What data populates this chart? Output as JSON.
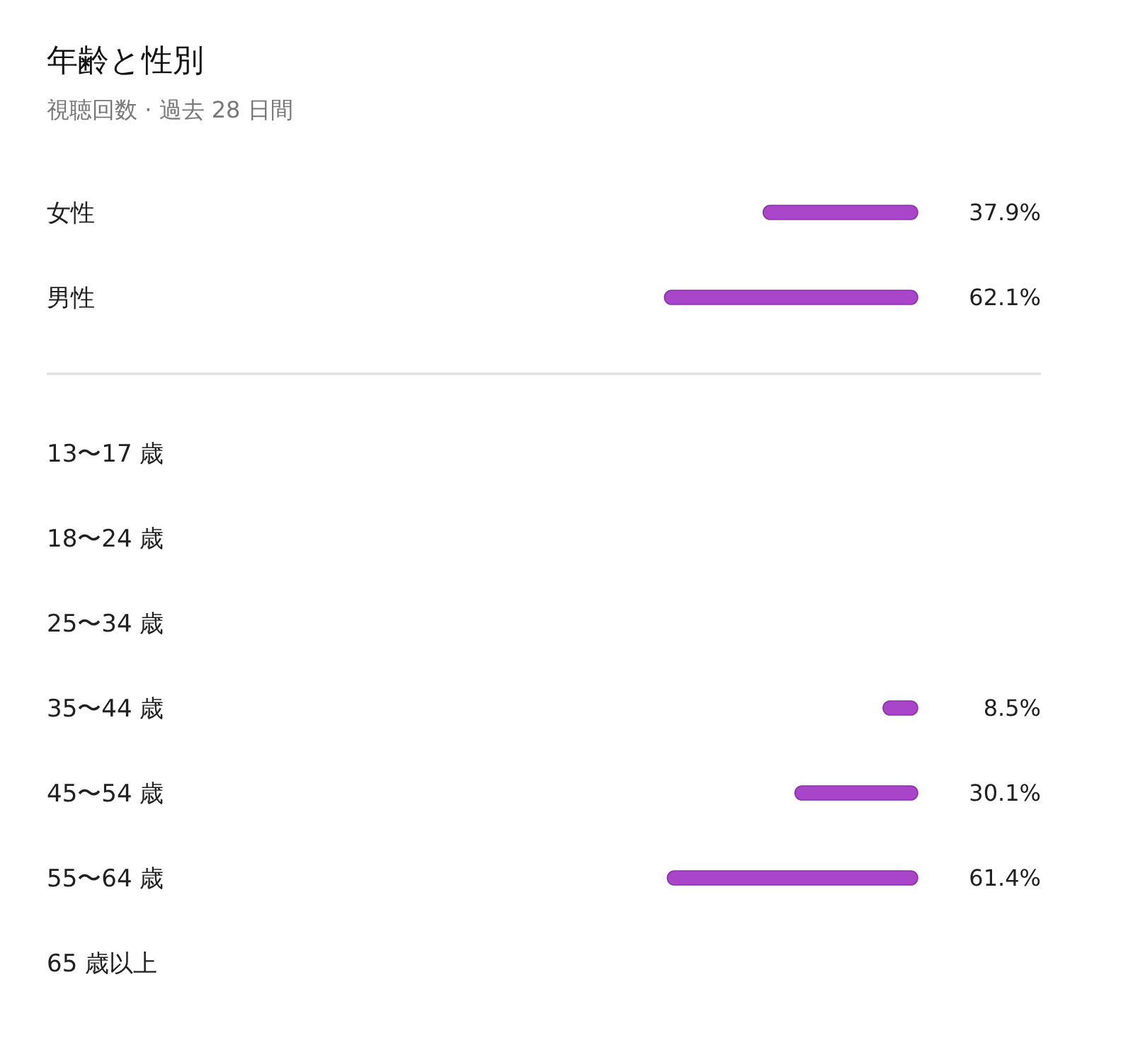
{
  "chart_data": {
    "type": "bar",
    "title": "年齢と性別",
    "subtitle": "視聴回数 · 過去 28 日間",
    "orientation": "horizontal",
    "categories": [
      "女性",
      "男性",
      "13〜17 歳",
      "18〜24 歳",
      "25〜34 歳",
      "35〜44 歳",
      "45〜54 歳",
      "55〜64 歳",
      "65 歳以上"
    ],
    "values": [
      37.9,
      62.1,
      null,
      null,
      null,
      8.5,
      30.1,
      61.4,
      null
    ],
    "value_labels": [
      "37.9%",
      "62.1%",
      null,
      null,
      null,
      "8.5%",
      "30.1%",
      "61.4%",
      null
    ],
    "color": "#a845c9",
    "tick_labels": false
  }
}
